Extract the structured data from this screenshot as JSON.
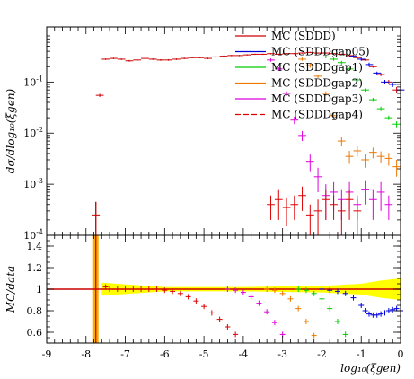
{
  "chart_data": [
    {
      "type": "line",
      "panel": "main",
      "title": "",
      "xlabel": "",
      "ylabel": "dσ/dlog₁₀(ξgen)",
      "xlim": [
        -9,
        0
      ],
      "ylim": [
        0.0001,
        0.8
      ],
      "yscale": "log",
      "y_ticks": [
        {
          "v": 0.0001,
          "m": "10",
          "e": "-4"
        },
        {
          "v": 0.001,
          "m": "10",
          "e": "-3"
        },
        {
          "v": 0.01,
          "m": "10",
          "e": "-2"
        },
        {
          "v": 0.1,
          "m": "10",
          "e": "-1"
        }
      ],
      "legend_position": "top-right",
      "series": [
        {
          "name": "MC (SDDD)",
          "color": "#cc0000",
          "style": "solid",
          "points": [
            [
              -7.75,
              0.00025,
              0.0002
            ],
            [
              -7.65,
              0.055,
              0.004
            ],
            [
              -7.5,
              0.28,
              0.01
            ],
            [
              -7.3,
              0.29,
              0.01
            ],
            [
              -7.1,
              0.28,
              0.01
            ],
            [
              -6.9,
              0.26,
              0.01
            ],
            [
              -6.7,
              0.27,
              0.01
            ],
            [
              -6.5,
              0.29,
              0.01
            ],
            [
              -6.3,
              0.28,
              0.01
            ],
            [
              -6.1,
              0.27,
              0.01
            ],
            [
              -5.9,
              0.27,
              0.01
            ],
            [
              -5.7,
              0.28,
              0.01
            ],
            [
              -5.5,
              0.29,
              0.01
            ],
            [
              -5.3,
              0.3,
              0.01
            ],
            [
              -5.1,
              0.3,
              0.01
            ],
            [
              -4.9,
              0.29,
              0.01
            ],
            [
              -4.7,
              0.31,
              0.01
            ],
            [
              -4.5,
              0.32,
              0.01
            ],
            [
              -4.3,
              0.33,
              0.01
            ],
            [
              -4.1,
              0.33,
              0.01
            ],
            [
              -3.9,
              0.34,
              0.01
            ],
            [
              -3.7,
              0.35,
              0.01
            ],
            [
              -3.5,
              0.35,
              0.01
            ],
            [
              -3.3,
              0.36,
              0.01
            ],
            [
              -3.1,
              0.35,
              0.01
            ],
            [
              -2.9,
              0.36,
              0.01
            ],
            [
              -2.7,
              0.36,
              0.01
            ],
            [
              -2.5,
              0.37,
              0.01
            ],
            [
              -2.3,
              0.38,
              0.01
            ],
            [
              -2.1,
              0.37,
              0.01
            ],
            [
              -1.9,
              0.37,
              0.01
            ],
            [
              -1.7,
              0.36,
              0.01
            ],
            [
              -1.5,
              0.35,
              0.01
            ],
            [
              -1.3,
              0.33,
              0.01
            ],
            [
              -1.1,
              0.3,
              0.01
            ],
            [
              -0.9,
              0.27,
              0.01
            ],
            [
              -0.7,
              0.2,
              0.01
            ],
            [
              -0.5,
              0.14,
              0.01
            ],
            [
              -0.3,
              0.1,
              0.01
            ],
            [
              -0.1,
              0.07,
              0.01
            ]
          ]
        },
        {
          "name": "MC (SDDDgap05)",
          "color": "#0000dd",
          "style": "solid",
          "points": [
            [
              -1.2,
              0.32,
              0.02
            ],
            [
              -1.0,
              0.28,
              0.02
            ],
            [
              -0.8,
              0.22,
              0.02
            ],
            [
              -0.6,
              0.15,
              0.01
            ],
            [
              -0.4,
              0.1,
              0.01
            ],
            [
              -0.2,
              0.09,
              0.01
            ],
            [
              0.0,
              0.07,
              0.01
            ]
          ]
        },
        {
          "name": "MC (SDDDgap1)",
          "color": "#00cc00",
          "style": "solid",
          "points": [
            [
              -1.9,
              0.31,
              0.02
            ],
            [
              -1.7,
              0.28,
              0.02
            ],
            [
              -1.5,
              0.24,
              0.02
            ],
            [
              -1.3,
              0.18,
              0.01
            ],
            [
              -1.1,
              0.11,
              0.01
            ],
            [
              -0.9,
              0.07,
              0.005
            ],
            [
              -0.7,
              0.045,
              0.004
            ],
            [
              -0.5,
              0.03,
              0.003
            ],
            [
              -0.3,
              0.02,
              0.002
            ],
            [
              -0.1,
              0.015,
              0.002
            ]
          ]
        },
        {
          "name": "MC (SDDDgap2)",
          "color": "#ee7700",
          "style": "solid",
          "points": [
            [
              -2.5,
              0.28,
              0.02
            ],
            [
              -2.3,
              0.21,
              0.02
            ],
            [
              -2.1,
              0.13,
              0.01
            ],
            [
              -1.9,
              0.06,
              0.006
            ],
            [
              -1.7,
              0.022,
              0.003
            ],
            [
              -1.5,
              0.007,
              0.0015
            ],
            [
              -1.3,
              0.0035,
              0.001
            ],
            [
              -1.1,
              0.0045,
              0.001
            ],
            [
              -0.9,
              0.003,
              0.0009
            ],
            [
              -0.7,
              0.0042,
              0.001
            ],
            [
              -0.5,
              0.0035,
              0.0009
            ],
            [
              -0.3,
              0.0032,
              0.0009
            ],
            [
              -0.1,
              0.0022,
              0.0008
            ]
          ]
        },
        {
          "name": "MC (SDDDgap3)",
          "color": "#dd00dd",
          "style": "solid",
          "points": [
            [
              -3.3,
              0.27,
              0.02
            ],
            [
              -3.1,
              0.18,
              0.015
            ],
            [
              -2.9,
              0.06,
              0.006
            ],
            [
              -2.7,
              0.018,
              0.003
            ],
            [
              -2.5,
              0.009,
              0.002
            ],
            [
              -2.3,
              0.0028,
              0.001
            ],
            [
              -2.1,
              0.0014,
              0.0007
            ],
            [
              -1.9,
              0.0006,
              0.0004
            ],
            [
              -1.7,
              0.0007,
              0.0004
            ],
            [
              -1.5,
              0.0005,
              0.0003
            ],
            [
              -1.3,
              0.0007,
              0.0004
            ],
            [
              -1.1,
              0.0004,
              0.0002
            ],
            [
              -0.9,
              0.0008,
              0.0004
            ],
            [
              -0.7,
              0.0005,
              0.0003
            ],
            [
              -0.5,
              0.0007,
              0.0004
            ],
            [
              -0.3,
              0.0004,
              0.0002
            ]
          ]
        },
        {
          "name": "MC (SDDDgap4)",
          "color": "#dd0000",
          "style": "dashed",
          "points": [
            [
              -3.3,
              0.0004,
              0.0002
            ],
            [
              -3.1,
              0.0005,
              0.0003
            ],
            [
              -2.9,
              0.00035,
              0.0002
            ],
            [
              -2.7,
              0.0004,
              0.0002
            ],
            [
              -2.5,
              0.0006,
              0.0003
            ],
            [
              -2.3,
              0.00025,
              0.00015
            ],
            [
              -2.1,
              0.0003,
              0.0002
            ],
            [
              -1.9,
              0.0005,
              0.0003
            ],
            [
              -1.7,
              0.0004,
              0.0002
            ],
            [
              -1.5,
              0.0003,
              0.0002
            ],
            [
              -1.3,
              0.0005,
              0.0003
            ],
            [
              -1.1,
              0.0003,
              0.0002
            ]
          ]
        }
      ]
    },
    {
      "type": "line",
      "panel": "ratio",
      "title": "",
      "xlabel": "log₁₀(ξgen)",
      "ylabel": "MC/data",
      "xlim": [
        -9,
        0
      ],
      "ylim": [
        0.5,
        1.5
      ],
      "x_ticks": [
        "-9",
        "-8",
        "-7",
        "-6",
        "-5",
        "-4",
        "-3",
        "-2",
        "-1",
        "0"
      ],
      "y_ticks": [
        "0.6",
        "0.8",
        "1",
        "1.2",
        "1.4"
      ],
      "band": {
        "name": "data uncertainty",
        "color": "#ffff00",
        "points": [
          [
            -7.6,
            0.06
          ],
          [
            -6,
            0.02
          ],
          [
            -4,
            0.02
          ],
          [
            -2,
            0.03
          ],
          [
            -1,
            0.05
          ],
          [
            -0.5,
            0.08
          ],
          [
            0,
            0.1
          ]
        ]
      },
      "series": [
        {
          "name": "MC (SDDDgap05)",
          "color": "#0000dd",
          "points": [
            [
              -2.0,
              1.0
            ],
            [
              -1.8,
              0.99
            ],
            [
              -1.6,
              0.98
            ],
            [
              -1.4,
              0.96
            ],
            [
              -1.2,
              0.92
            ],
            [
              -1.0,
              0.85
            ],
            [
              -0.9,
              0.8
            ],
            [
              -0.8,
              0.77
            ],
            [
              -0.7,
              0.76
            ],
            [
              -0.6,
              0.76
            ],
            [
              -0.5,
              0.77
            ],
            [
              -0.4,
              0.78
            ],
            [
              -0.3,
              0.8
            ],
            [
              -0.2,
              0.81
            ],
            [
              -0.1,
              0.82
            ],
            [
              0.0,
              0.8
            ]
          ]
        },
        {
          "name": "MC (SDDDgap1)",
          "color": "#00cc00",
          "points": [
            [
              -2.6,
              1.0
            ],
            [
              -2.4,
              0.99
            ],
            [
              -2.2,
              0.96
            ],
            [
              -2.0,
              0.91
            ],
            [
              -1.8,
              0.82
            ],
            [
              -1.6,
              0.7
            ],
            [
              -1.4,
              0.58
            ]
          ]
        },
        {
          "name": "MC (SDDDgap2)",
          "color": "#ee7700",
          "points": [
            [
              -3.4,
              1.0
            ],
            [
              -3.2,
              0.99
            ],
            [
              -3.0,
              0.96
            ],
            [
              -2.8,
              0.91
            ],
            [
              -2.6,
              0.82
            ],
            [
              -2.4,
              0.7
            ],
            [
              -2.2,
              0.57
            ]
          ]
        },
        {
          "name": "MC (SDDDgap3)",
          "color": "#dd00dd",
          "points": [
            [
              -4.4,
              1.0
            ],
            [
              -4.2,
              0.99
            ],
            [
              -4.0,
              0.97
            ],
            [
              -3.8,
              0.93
            ],
            [
              -3.6,
              0.87
            ],
            [
              -3.4,
              0.79
            ],
            [
              -3.2,
              0.69
            ],
            [
              -3.0,
              0.58
            ]
          ]
        },
        {
          "name": "MC (SDDDgap4)",
          "color": "#dd0000",
          "points": [
            [
              -7.5,
              1.02
            ],
            [
              -7.4,
              1.0
            ],
            [
              -7.2,
              1.0
            ],
            [
              -7.0,
              1.0
            ],
            [
              -6.8,
              1.0
            ],
            [
              -6.6,
              1.0
            ],
            [
              -6.4,
              1.0
            ],
            [
              -6.2,
              1.0
            ],
            [
              -6.0,
              0.99
            ],
            [
              -5.8,
              0.98
            ],
            [
              -5.6,
              0.96
            ],
            [
              -5.4,
              0.93
            ],
            [
              -5.2,
              0.89
            ],
            [
              -5.0,
              0.84
            ],
            [
              -4.8,
              0.78
            ],
            [
              -4.6,
              0.72
            ],
            [
              -4.4,
              0.65
            ],
            [
              -4.2,
              0.58
            ]
          ]
        }
      ],
      "reference_line": {
        "y": 1.0,
        "color": "#cc0000"
      },
      "first_bin": {
        "x": -7.75,
        "color": "#cc0000",
        "band_color": "#ffaa00"
      }
    }
  ]
}
